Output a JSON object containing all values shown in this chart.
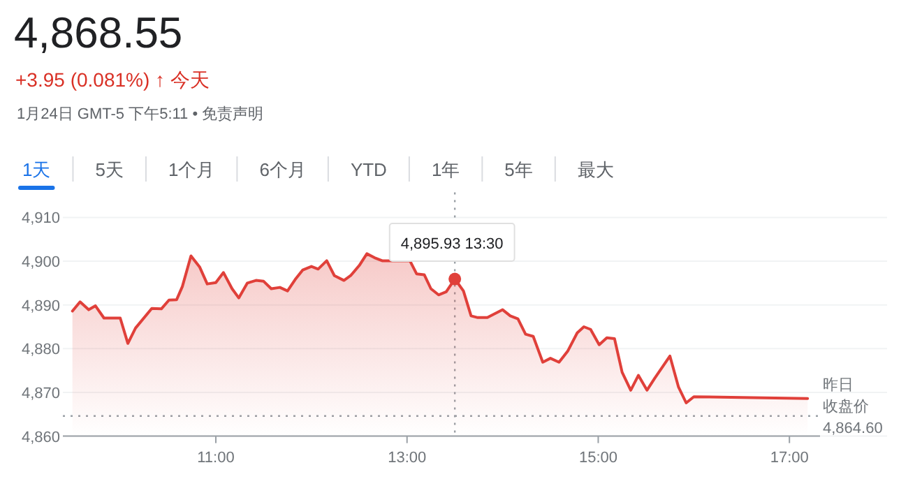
{
  "chart_data": {
    "type": "area",
    "title": "4,868.55",
    "subtitle": "+3.95 (0.081%) ↑ 今天",
    "annotations": [
      "1月24日 GMT-5 下午5:11 • 免责声明",
      "1天",
      "5天",
      "1个月",
      "6个月",
      "YTD",
      "1年",
      "5年",
      "最大",
      {
        "text": "4,895.93  13:30",
        "x": 13.5,
        "y": 4895.93
      }
    ],
    "x": [
      9.5,
      9.58,
      9.67,
      9.74,
      9.83,
      10.0,
      10.08,
      10.16,
      10.33,
      10.43,
      10.51,
      10.59,
      10.65,
      10.74,
      10.83,
      10.91,
      11.0,
      11.08,
      11.17,
      11.24,
      11.33,
      11.42,
      11.5,
      11.58,
      11.67,
      11.75,
      11.83,
      11.91,
      12.0,
      12.07,
      12.16,
      12.24,
      12.34,
      12.41,
      12.5,
      12.58,
      12.66,
      12.74,
      12.84,
      13.03,
      13.1,
      13.18,
      13.25,
      13.33,
      13.41,
      13.5,
      13.59,
      13.67,
      13.74,
      13.84,
      14.0,
      14.08,
      14.16,
      14.24,
      14.32,
      14.42,
      14.5,
      14.59,
      14.68,
      14.78,
      14.85,
      14.92,
      15.01,
      15.09,
      15.17,
      15.25,
      15.34,
      15.42,
      15.51,
      15.59,
      15.75,
      15.84,
      15.92,
      16.0,
      17.19
    ],
    "values": [
      4888.6,
      4890.7,
      4888.9,
      4889.8,
      4887.0,
      4887.0,
      4881.2,
      4884.7,
      4889.2,
      4889.1,
      4891.1,
      4891.2,
      4894.2,
      4901.2,
      4898.7,
      4894.8,
      4895.1,
      4897.4,
      4893.7,
      4891.6,
      4895.0,
      4895.6,
      4895.4,
      4893.7,
      4894.0,
      4893.2,
      4895.8,
      4898.0,
      4898.8,
      4898.2,
      4900.1,
      4896.7,
      4895.6,
      4896.7,
      4899.0,
      4901.7,
      4900.8,
      4900.1,
      null,
      4900.1,
      4897.1,
      4896.9,
      4893.7,
      4892.3,
      4893.0,
      4895.93,
      4893.2,
      4887.5,
      4887.1,
      4887.1,
      4888.9,
      4887.5,
      4886.8,
      4883.3,
      4882.8,
      4876.9,
      4877.8,
      4876.9,
      4879.4,
      4883.6,
      4885.0,
      4884.4,
      4880.9,
      4882.5,
      4882.3,
      4874.6,
      4870.5,
      4873.9,
      4870.5,
      4873.2,
      4878.3,
      4871.2,
      4867.6,
      4869.0,
      4868.6
    ],
    "color": "#e0403a",
    "xlim": [
      9.4,
      17.32
    ],
    "ylim": [
      4860,
      4910
    ],
    "xticks": [
      {
        "value": 11,
        "label": "11:00"
      },
      {
        "value": 13,
        "label": "13:00"
      },
      {
        "value": 15,
        "label": "15:00"
      },
      {
        "value": 17,
        "label": "17:00"
      }
    ],
    "yticks": [
      {
        "value": 4860,
        "label": "4,860"
      },
      {
        "value": 4870,
        "label": "4,870"
      },
      {
        "value": 4880,
        "label": "4,880"
      },
      {
        "value": 4890,
        "label": "4,890"
      },
      {
        "value": 4900,
        "label": "4,900"
      },
      {
        "value": 4910,
        "label": "4,910"
      }
    ],
    "grid": "y",
    "ref_lines": [
      {
        "axis": "y",
        "value": 4864.6,
        "label": "昨日收盘价\n4,864.60",
        "color": "#9aa0a6",
        "line_style": "dotted"
      },
      {
        "axis": "x",
        "value": 13.5,
        "label": null,
        "color": "#9aa0a6",
        "line_style": "dotted"
      }
    ]
  }
}
